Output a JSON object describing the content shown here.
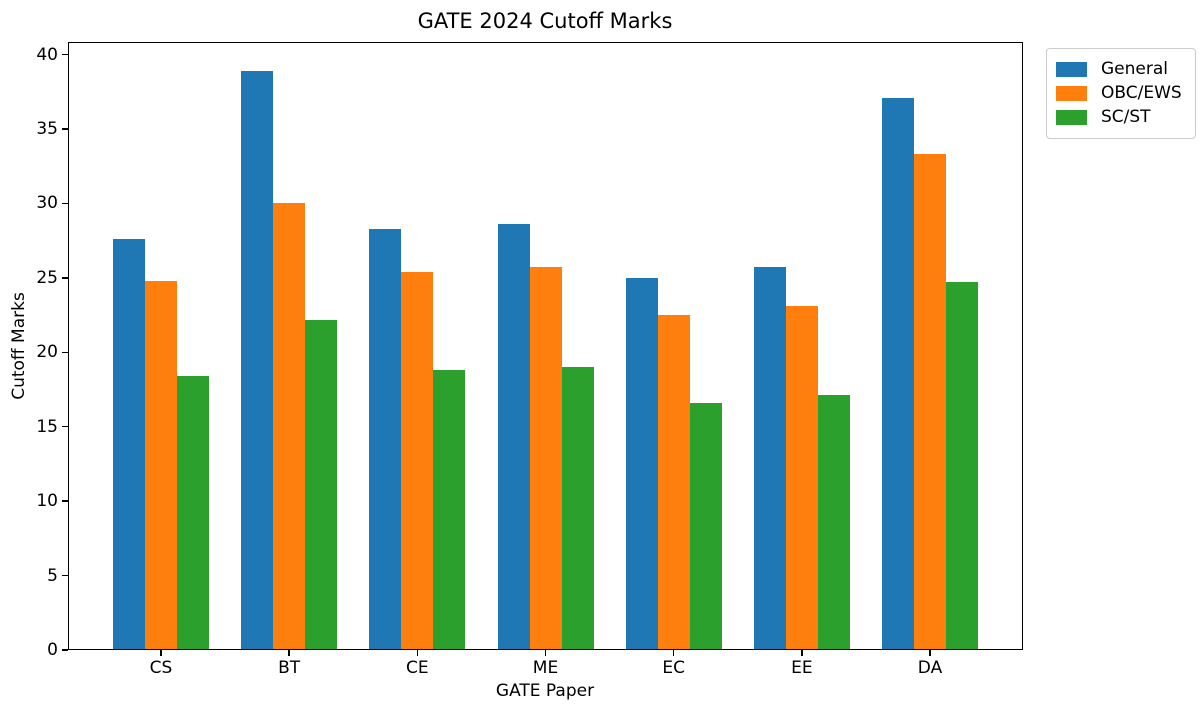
{
  "chart_data": {
    "type": "bar",
    "title": "GATE 2024 Cutoff Marks",
    "xlabel": "GATE Paper",
    "ylabel": "Cutoff Marks",
    "categories": [
      "CS",
      "BT",
      "CE",
      "ME",
      "EC",
      "EE",
      "DA"
    ],
    "series": [
      {
        "name": "General",
        "color": "#1f77b4",
        "values": [
          27.6,
          38.9,
          28.3,
          28.6,
          25.0,
          25.7,
          37.1
        ]
      },
      {
        "name": "OBC/EWS",
        "color": "#ff7f0e",
        "values": [
          24.8,
          30.0,
          25.4,
          25.7,
          22.5,
          23.1,
          33.3
        ]
      },
      {
        "name": "SC/ST",
        "color": "#2ca02c",
        "values": [
          18.4,
          22.2,
          18.8,
          19.0,
          16.6,
          17.1,
          24.7
        ]
      }
    ],
    "ylim": [
      0,
      40.845
    ],
    "yticks": [
      0,
      5,
      10,
      15,
      20,
      25,
      30,
      35,
      40
    ],
    "grid": false,
    "legend_position": "outside upper right",
    "background": "#ffffff",
    "spine_color": "#000000"
  }
}
